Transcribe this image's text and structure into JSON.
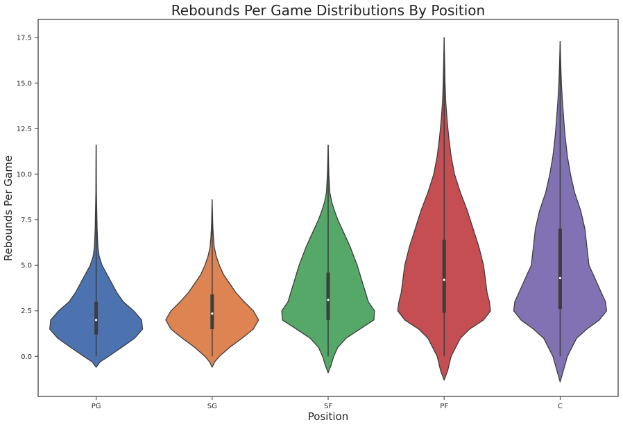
{
  "chart_data": {
    "type": "violin",
    "title": "Rebounds Per Game Distributions By Position",
    "xlabel": "Position",
    "ylabel": "Rebounds Per Game",
    "categories": [
      "PG",
      "SG",
      "SF",
      "PF",
      "C"
    ],
    "yticks": [
      "0.0",
      "2.5",
      "5.0",
      "7.5",
      "10.0",
      "12.5",
      "15.0",
      "17.5"
    ],
    "ytick_values": [
      0,
      2.5,
      5,
      7.5,
      10,
      12.5,
      15,
      17.5
    ],
    "ylim": [
      -2.2,
      18.5
    ],
    "grid": false,
    "colors": [
      "#4c72b0",
      "#dd8452",
      "#55a868",
      "#c44e52",
      "#8172b3"
    ],
    "series": [
      {
        "category": "PG",
        "min": 0.0,
        "q1": 1.2,
        "median": 2.0,
        "q3": 3.0,
        "max": 11.6,
        "density": [
          [
            -0.6,
            0.0
          ],
          [
            -0.3,
            0.08
          ],
          [
            0.0,
            0.25
          ],
          [
            0.5,
            0.52
          ],
          [
            1.0,
            0.78
          ],
          [
            1.5,
            0.94
          ],
          [
            2.0,
            0.92
          ],
          [
            2.5,
            0.76
          ],
          [
            3.0,
            0.55
          ],
          [
            3.5,
            0.42
          ],
          [
            4.0,
            0.32
          ],
          [
            4.5,
            0.22
          ],
          [
            5.0,
            0.12
          ],
          [
            5.5,
            0.06
          ],
          [
            6.0,
            0.035
          ],
          [
            7.0,
            0.02
          ],
          [
            8.0,
            0.012
          ],
          [
            9.0,
            0.006
          ],
          [
            10.5,
            0.003
          ],
          [
            11.6,
            0.0
          ]
        ]
      },
      {
        "category": "SG",
        "min": 0.0,
        "q1": 1.5,
        "median": 2.35,
        "q3": 3.4,
        "max": 8.6,
        "density": [
          [
            -0.6,
            0.0
          ],
          [
            -0.3,
            0.05
          ],
          [
            0.0,
            0.14
          ],
          [
            0.5,
            0.34
          ],
          [
            1.0,
            0.58
          ],
          [
            1.5,
            0.8
          ],
          [
            2.0,
            0.9
          ],
          [
            2.5,
            0.8
          ],
          [
            3.0,
            0.62
          ],
          [
            3.5,
            0.46
          ],
          [
            4.0,
            0.34
          ],
          [
            4.5,
            0.22
          ],
          [
            5.0,
            0.14
          ],
          [
            5.5,
            0.08
          ],
          [
            6.0,
            0.04
          ],
          [
            6.5,
            0.025
          ],
          [
            7.0,
            0.015
          ],
          [
            7.5,
            0.01
          ],
          [
            8.0,
            0.006
          ],
          [
            8.6,
            0.0
          ]
        ]
      },
      {
        "category": "SF",
        "min": 0.0,
        "q1": 2.0,
        "median": 3.1,
        "q3": 4.6,
        "max": 11.6,
        "density": [
          [
            -0.9,
            0.0
          ],
          [
            -0.5,
            0.04
          ],
          [
            0.0,
            0.08
          ],
          [
            0.5,
            0.14
          ],
          [
            1.0,
            0.26
          ],
          [
            1.5,
            0.46
          ],
          [
            2.0,
            0.66
          ],
          [
            2.5,
            0.67
          ],
          [
            3.0,
            0.58
          ],
          [
            3.5,
            0.54
          ],
          [
            4.0,
            0.5
          ],
          [
            4.5,
            0.46
          ],
          [
            5.0,
            0.42
          ],
          [
            5.5,
            0.37
          ],
          [
            6.0,
            0.32
          ],
          [
            6.5,
            0.26
          ],
          [
            7.0,
            0.2
          ],
          [
            7.5,
            0.14
          ],
          [
            8.0,
            0.09
          ],
          [
            8.5,
            0.05
          ],
          [
            9.0,
            0.025
          ],
          [
            10.0,
            0.01
          ],
          [
            11.0,
            0.004
          ],
          [
            11.6,
            0.0
          ]
        ]
      },
      {
        "category": "PF",
        "min": 0.0,
        "q1": 2.4,
        "median": 4.2,
        "q3": 6.4,
        "max": 17.5,
        "density": [
          [
            -1.3,
            0.0
          ],
          [
            -0.8,
            0.03
          ],
          [
            0.0,
            0.06
          ],
          [
            1.0,
            0.14
          ],
          [
            1.5,
            0.22
          ],
          [
            2.0,
            0.34
          ],
          [
            2.5,
            0.4
          ],
          [
            3.0,
            0.39
          ],
          [
            3.5,
            0.37
          ],
          [
            4.0,
            0.36
          ],
          [
            4.5,
            0.35
          ],
          [
            5.0,
            0.34
          ],
          [
            6.0,
            0.3
          ],
          [
            7.0,
            0.25
          ],
          [
            8.0,
            0.2
          ],
          [
            9.0,
            0.14
          ],
          [
            10.0,
            0.09
          ],
          [
            11.0,
            0.06
          ],
          [
            12.0,
            0.04
          ],
          [
            13.0,
            0.025
          ],
          [
            14.0,
            0.014
          ],
          [
            15.0,
            0.008
          ],
          [
            16.0,
            0.005
          ],
          [
            17.5,
            0.0
          ]
        ]
      },
      {
        "category": "C",
        "min": 0.0,
        "q1": 2.6,
        "median": 4.3,
        "q3": 7.0,
        "max": 17.3,
        "density": [
          [
            -1.4,
            0.0
          ],
          [
            -0.8,
            0.03
          ],
          [
            0.0,
            0.07
          ],
          [
            1.0,
            0.16
          ],
          [
            1.5,
            0.26
          ],
          [
            2.0,
            0.38
          ],
          [
            2.5,
            0.45
          ],
          [
            3.0,
            0.44
          ],
          [
            3.5,
            0.4
          ],
          [
            4.0,
            0.36
          ],
          [
            4.5,
            0.32
          ],
          [
            5.0,
            0.28
          ],
          [
            6.0,
            0.26
          ],
          [
            7.0,
            0.24
          ],
          [
            8.0,
            0.2
          ],
          [
            9.0,
            0.14
          ],
          [
            10.0,
            0.1
          ],
          [
            11.0,
            0.07
          ],
          [
            12.0,
            0.05
          ],
          [
            13.0,
            0.035
          ],
          [
            14.0,
            0.022
          ],
          [
            15.0,
            0.012
          ],
          [
            16.0,
            0.006
          ],
          [
            17.3,
            0.0
          ]
        ]
      }
    ]
  }
}
